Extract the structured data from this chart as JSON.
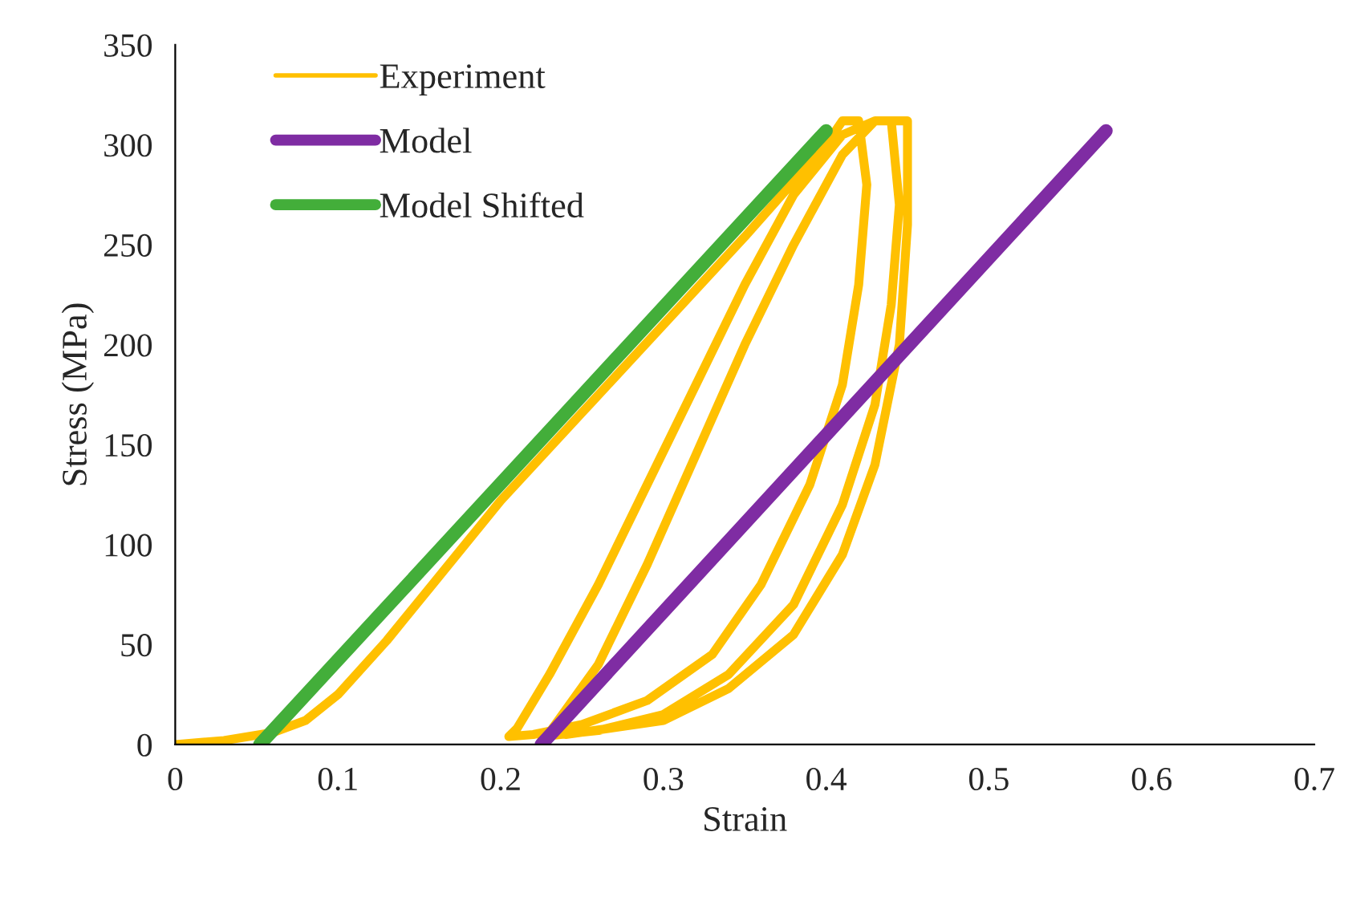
{
  "chart_data": {
    "type": "line",
    "xlabel": "Strain",
    "ylabel": "Stress (MPa)",
    "xlim": [
      0,
      0.7
    ],
    "ylim": [
      0,
      350
    ],
    "xticks": [
      0,
      0.1,
      0.2,
      0.3,
      0.4,
      0.5,
      0.6,
      0.7
    ],
    "yticks": [
      0,
      50,
      100,
      150,
      200,
      250,
      300,
      350
    ],
    "grid": false,
    "legend": "top left",
    "marker": "none",
    "line_style": "solid",
    "series": [
      {
        "name": "Experiment",
        "color": "#ffc000",
        "x": [
          0,
          0.03,
          0.06,
          0.08,
          0.1,
          0.13,
          0.16,
          0.2,
          0.25,
          0.3,
          0.35,
          0.4,
          0.41,
          0.42,
          0.425,
          0.42,
          0.41,
          0.39,
          0.36,
          0.33,
          0.29,
          0.25,
          0.22,
          0.205,
          0.21,
          0.23,
          0.26,
          0.29,
          0.32,
          0.35,
          0.38,
          0.41,
          0.43,
          0.44,
          0.445,
          0.44,
          0.43,
          0.41,
          0.38,
          0.34,
          0.3,
          0.26,
          0.225,
          0.23,
          0.26,
          0.29,
          0.32,
          0.35,
          0.38,
          0.41,
          0.43,
          0.45,
          0.45,
          0.445,
          0.43,
          0.41,
          0.38,
          0.34,
          0.3,
          0.24
        ],
        "values": [
          0,
          2,
          6,
          12,
          25,
          52,
          82,
          122,
          166,
          210,
          254,
          300,
          312,
          312,
          280,
          230,
          180,
          130,
          80,
          45,
          22,
          10,
          5,
          4,
          8,
          35,
          80,
          130,
          180,
          230,
          275,
          305,
          312,
          312,
          270,
          220,
          170,
          120,
          70,
          35,
          15,
          7,
          4,
          6,
          40,
          90,
          145,
          200,
          250,
          295,
          312,
          312,
          260,
          200,
          140,
          95,
          55,
          28,
          12,
          5
        ]
      },
      {
        "name": "Model",
        "color": "#7f2ca3",
        "x": [
          0.225,
          0.572
        ],
        "values": [
          0,
          307
        ]
      },
      {
        "name": "Model Shifted",
        "color": "#43ae3a",
        "x": [
          0.052,
          0.4
        ],
        "values": [
          0,
          307
        ]
      }
    ]
  }
}
